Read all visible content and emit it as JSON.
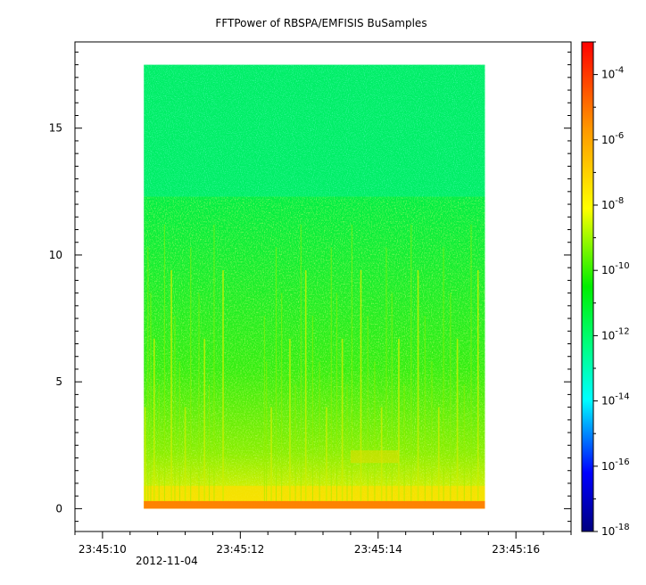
{
  "chart_data": {
    "type": "heatmap",
    "title": "FFTPower of RBSPA/EMFISIS  BuSamples",
    "xlabel": "",
    "ylabel": "",
    "x_date_label": "2012-11-04",
    "x_ticks": [
      "23:45:10",
      "23:45:12",
      "23:45:14",
      "23:45:16"
    ],
    "x_tick_values_s": [
      10,
      12,
      14,
      16
    ],
    "xlim_s": [
      9.6,
      16.8
    ],
    "data_xlim_s": [
      10.6,
      15.55
    ],
    "y_ticks": [
      "0",
      "5",
      "10",
      "15"
    ],
    "y_tick_values": [
      0,
      5,
      10,
      15
    ],
    "ylim": [
      -0.9,
      18.4
    ],
    "data_ylim": [
      0,
      17.5
    ],
    "colorbar": {
      "scale": "log",
      "range": [
        1e-18,
        0.001
      ],
      "tick_exponents": [
        "-4",
        "-6",
        "-8",
        "-10",
        "-12",
        "-14",
        "-16",
        "-18"
      ],
      "tick_values": [
        0.0001,
        1e-06,
        1e-08,
        1e-10,
        1e-12,
        1e-14,
        1e-16,
        1e-18
      ],
      "colors": [
        "#00007f",
        "#0000ff",
        "#00ffff",
        "#00ff66",
        "#00ee00",
        "#ffff00",
        "#ff9900",
        "#ff0000"
      ]
    },
    "grid": false
  }
}
